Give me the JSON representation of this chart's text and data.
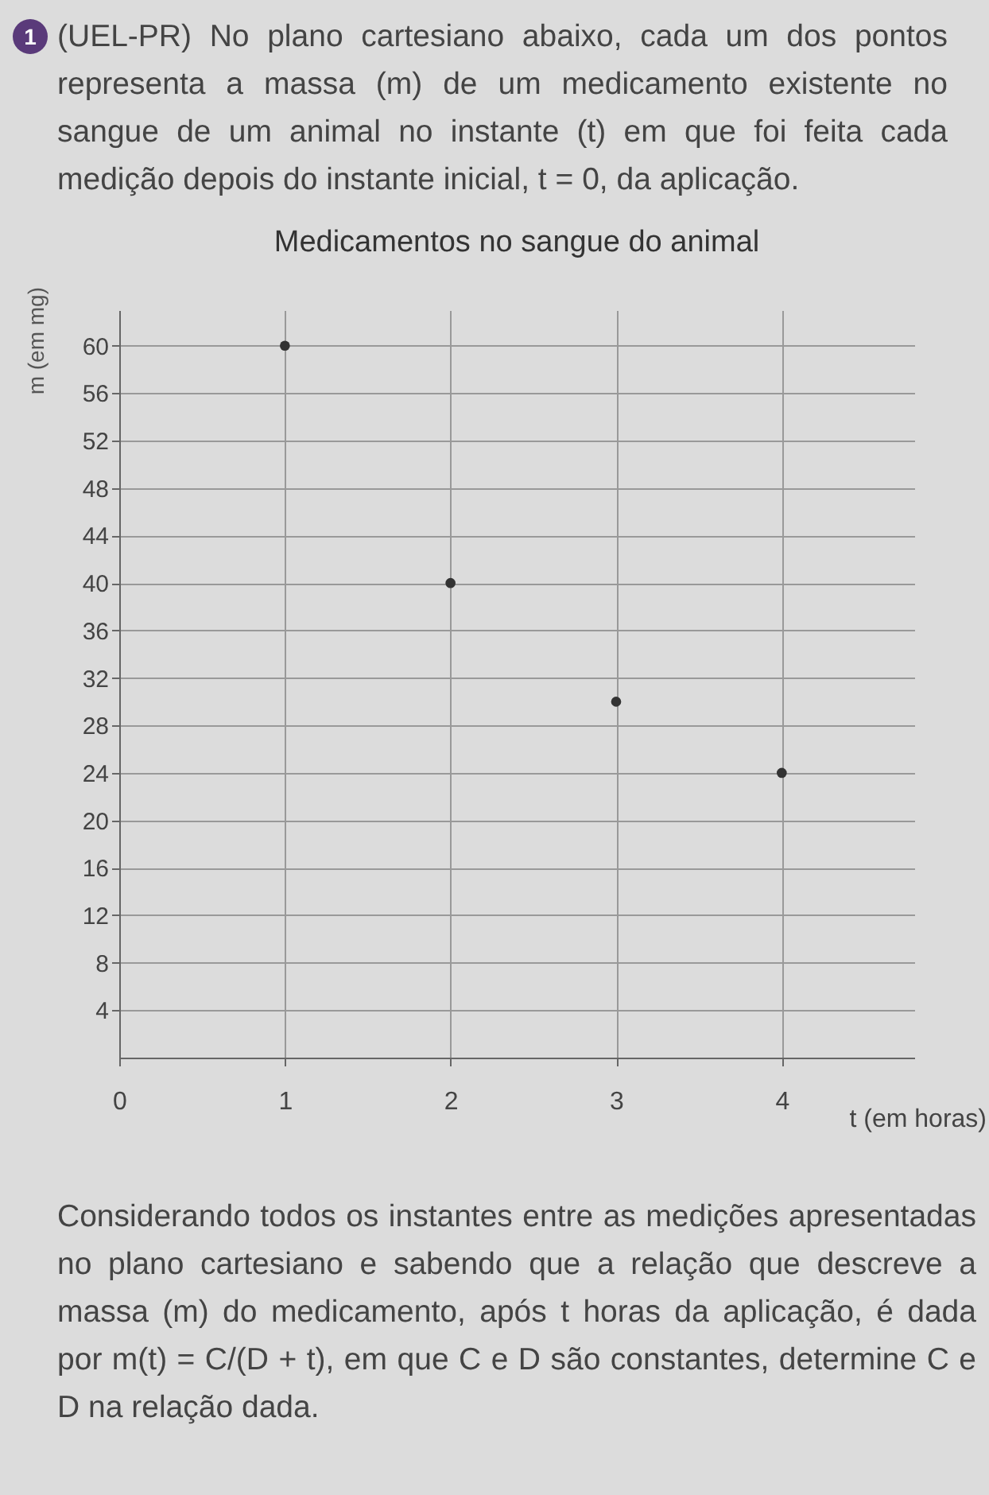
{
  "chart_data": {
    "type": "scatter",
    "title": "Medicamentos no sangue do animal",
    "xlabel": "t (em horas)",
    "ylabel": "m (em mg)",
    "annotations": [
      "1",
      "(UEL-PR) No plano cartesiano abaixo, cada um dos pontos representa a massa (m) de um medicamento existente no sangue de um animal no instante (t) em que foi feita cada medição depois do instante inicial, t = 0, da aplicação.",
      "Considerando todos os instantes entre as medições apresentadas no plano cartesiano e sabendo que a relação que descreve a massa (m) do medicamento, após t horas da aplicação, é dada por m(t) = C/(D + t), em que C e D são constantes, determine C e D na relação dada."
    ],
    "x": [
      1,
      2,
      3,
      4
    ],
    "series": [
      {
        "color": "#333333",
        "values": [
          60,
          40,
          30,
          24
        ]
      }
    ],
    "xlim": [
      0,
      4.8
    ],
    "xticks": [
      0,
      1,
      2,
      3,
      4
    ],
    "ylim": [
      0,
      63
    ],
    "yticks": [
      4,
      8,
      12,
      16,
      20,
      24,
      28,
      32,
      36,
      40,
      44,
      48,
      52,
      56,
      60
    ],
    "grid": true,
    "marker": "circle"
  }
}
